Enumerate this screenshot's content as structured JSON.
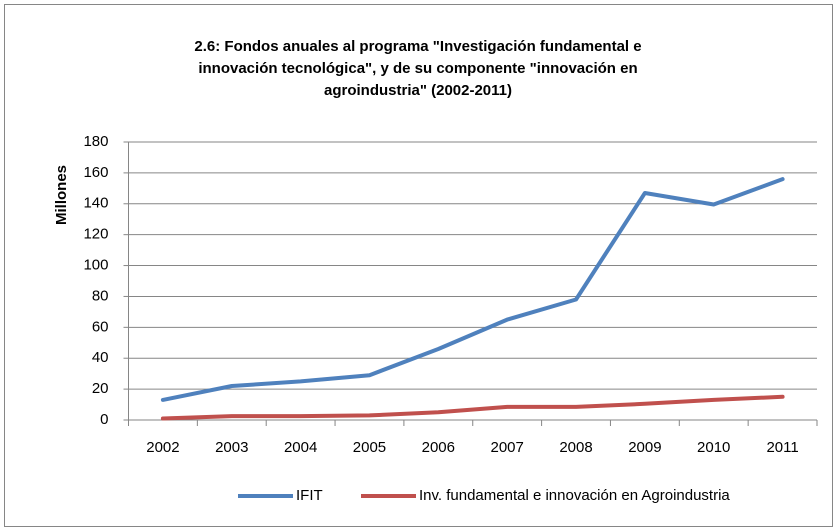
{
  "chart_data": {
    "type": "line",
    "title": "2.6: Fondos anuales al programa \"Investigación fundamental e innovación tecnológica\", y de su componente \"innovación en agroindustria\" (2002-2011)",
    "y_label": "Millones",
    "categories": [
      "2002",
      "2003",
      "2004",
      "2005",
      "2006",
      "2007",
      "2008",
      "2009",
      "2010",
      "2011"
    ],
    "series": [
      {
        "name": "IFIT",
        "color": "#4f81bd",
        "values": [
          13,
          22,
          25,
          29,
          46,
          65,
          78,
          147,
          139.5,
          156
        ]
      },
      {
        "name": "Inv. fundamental e innovación en Agroindustria",
        "color": "#c0504d",
        "values": [
          1,
          2.5,
          2.5,
          3,
          5,
          8.5,
          8.5,
          10.5,
          13,
          15
        ]
      }
    ],
    "ylim": [
      0,
      180
    ],
    "yticks": [
      0,
      20,
      40,
      60,
      80,
      100,
      120,
      140,
      160,
      180
    ],
    "grid": true,
    "legend": "bottom"
  }
}
